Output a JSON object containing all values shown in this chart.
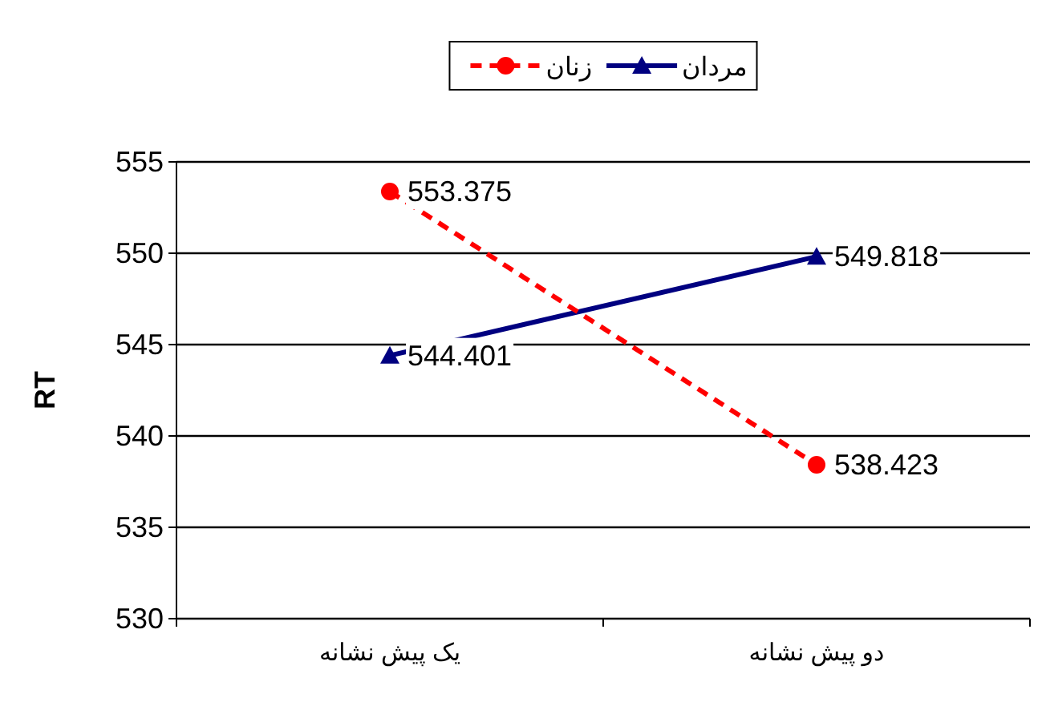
{
  "chart_data": {
    "type": "line",
    "ylabel": "RT",
    "categories": [
      "یک پیش نشانه",
      "دو پیش نشانه"
    ],
    "series": [
      {
        "name": "مردان",
        "color": "#000080",
        "values": [
          544.401,
          549.818
        ],
        "marker": "triangle",
        "line_style": "solid"
      },
      {
        "name": "زنان",
        "color": "#ff0000",
        "values": [
          553.375,
          538.423
        ],
        "marker": "circle",
        "line_style": "dashed"
      }
    ],
    "ylim": [
      530,
      555
    ],
    "yticks": [
      530,
      535,
      540,
      545,
      550,
      555
    ],
    "grid": "y",
    "legend": "top",
    "data_labels": true
  }
}
